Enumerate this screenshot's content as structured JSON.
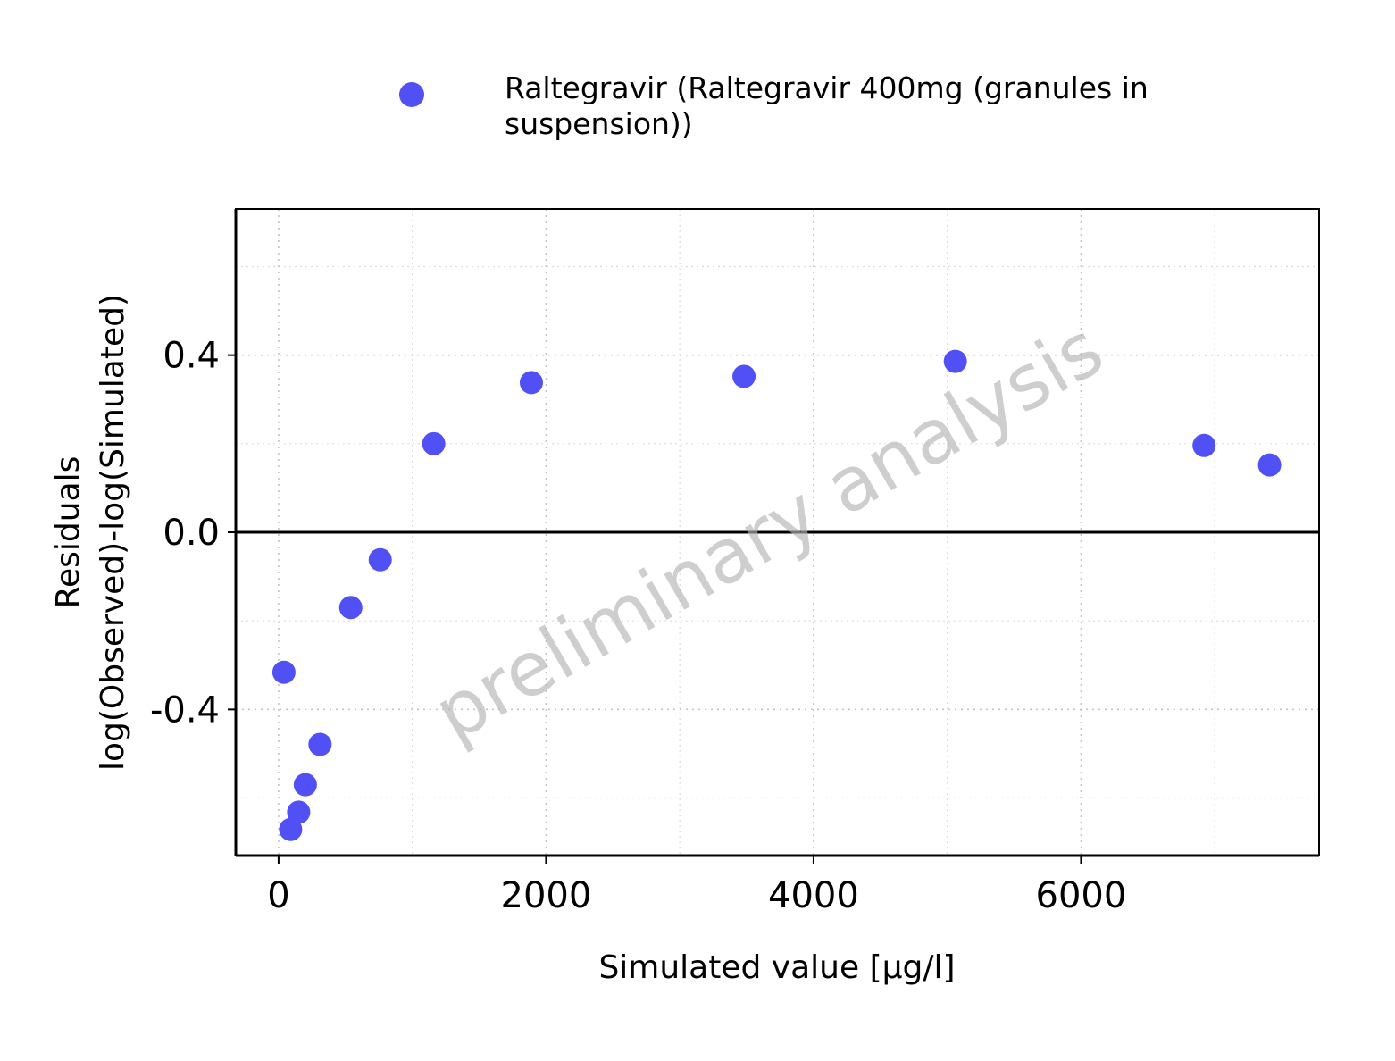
{
  "chart_data": {
    "type": "scatter",
    "xlabel": "Simulated value [µg/l]",
    "ylabel_lines": [
      "Residuals",
      "log(Observed)-log(Simulated)"
    ],
    "xlim": [
      -320,
      7780
    ],
    "ylim": [
      -0.73,
      0.73
    ],
    "x_ticks": [
      0,
      2000,
      4000,
      6000
    ],
    "x_tick_labels": [
      "0",
      "2000",
      "4000",
      "6000"
    ],
    "x_minor_ticks": [
      1000,
      3000,
      5000,
      7000
    ],
    "y_ticks": [
      -0.4,
      0.0,
      0.4
    ],
    "y_tick_labels": [
      "-0.4",
      "0.0",
      "0.4"
    ],
    "y_minor_ticks": [
      -0.6,
      -0.2,
      0.2,
      0.6
    ],
    "grid": true,
    "reference_line_y": 0,
    "legend_position": "top",
    "watermark": "preliminary analysis",
    "series": [
      {
        "name_lines": [
          "Raltegravir (Raltegravir 400mg (granules in",
          "suspension))"
        ],
        "color": "#5050f5",
        "points": [
          {
            "x": 40,
            "y": -0.316
          },
          {
            "x": 90,
            "y": -0.671
          },
          {
            "x": 150,
            "y": -0.632
          },
          {
            "x": 200,
            "y": -0.57
          },
          {
            "x": 310,
            "y": -0.479
          },
          {
            "x": 540,
            "y": -0.17
          },
          {
            "x": 760,
            "y": -0.062
          },
          {
            "x": 1160,
            "y": 0.2
          },
          {
            "x": 1890,
            "y": 0.338
          },
          {
            "x": 3480,
            "y": 0.352
          },
          {
            "x": 5060,
            "y": 0.386
          },
          {
            "x": 6920,
            "y": 0.196
          },
          {
            "x": 7410,
            "y": 0.152
          }
        ]
      }
    ]
  }
}
